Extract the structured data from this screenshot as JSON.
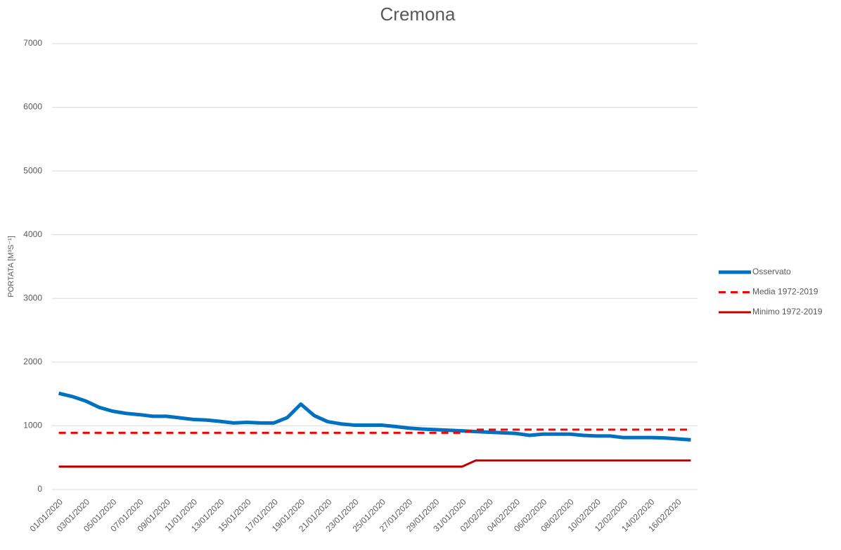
{
  "chart_data": {
    "type": "line",
    "title": "Cremona",
    "y_label": "PORTATA [M³S⁻¹]",
    "categories": [
      "01/01/2020",
      null,
      "03/01/2020",
      null,
      "05/01/2020",
      null,
      "07/01/2020",
      null,
      "09/01/2020",
      null,
      "11/01/2020",
      null,
      "13/01/2020",
      null,
      "15/01/2020",
      null,
      "17/01/2020",
      null,
      "19/01/2020",
      null,
      "21/01/2020",
      null,
      "23/01/2020",
      null,
      "25/01/2020",
      null,
      "27/01/2020",
      null,
      "29/01/2020",
      null,
      "31/01/2020",
      null,
      "02/02/2020",
      null,
      "04/02/2020",
      null,
      "06/02/2020",
      null,
      "08/02/2020",
      null,
      "10/02/2020",
      null,
      "12/02/2020",
      null,
      "14/02/2020",
      null,
      "16/02/2020",
      null
    ],
    "series": [
      {
        "name": "Osservato",
        "color": "#0070c0",
        "dash": "solid",
        "width": 5,
        "values": [
          1510,
          1460,
          1390,
          1290,
          1230,
          1195,
          1175,
          1150,
          1150,
          1125,
          1100,
          1090,
          1070,
          1045,
          1055,
          1045,
          1045,
          1130,
          1340,
          1160,
          1065,
          1030,
          1010,
          1010,
          1010,
          990,
          965,
          950,
          940,
          930,
          920,
          910,
          900,
          890,
          880,
          850,
          870,
          870,
          870,
          850,
          840,
          840,
          815,
          815,
          815,
          810,
          795,
          780
        ]
      },
      {
        "name": "Media 1972-2019",
        "color": "#ff0000",
        "dash": "dashed",
        "width": 3,
        "values": [
          890,
          890,
          890,
          890,
          890,
          890,
          890,
          890,
          890,
          890,
          890,
          890,
          890,
          890,
          890,
          890,
          890,
          890,
          890,
          890,
          890,
          890,
          890,
          890,
          890,
          890,
          890,
          890,
          890,
          890,
          890,
          940,
          940,
          940,
          940,
          940,
          940,
          940,
          940,
          940,
          940,
          940,
          940,
          940,
          940,
          940,
          940,
          940
        ]
      },
      {
        "name": "Minimo 1972-2019",
        "color": "#c00000",
        "dash": "solid",
        "width": 3,
        "values": [
          360,
          360,
          360,
          360,
          360,
          360,
          360,
          360,
          360,
          360,
          360,
          360,
          360,
          360,
          360,
          360,
          360,
          360,
          360,
          360,
          360,
          360,
          360,
          360,
          360,
          360,
          360,
          360,
          360,
          360,
          360,
          455,
          455,
          455,
          455,
          455,
          455,
          455,
          455,
          455,
          455,
          455,
          455,
          455,
          455,
          455,
          455,
          455
        ]
      }
    ],
    "ylim": [
      0,
      7000
    ],
    "yticks": [
      0,
      1000,
      2000,
      3000,
      4000,
      5000,
      6000,
      7000
    ],
    "grid": true,
    "legend": "right"
  }
}
